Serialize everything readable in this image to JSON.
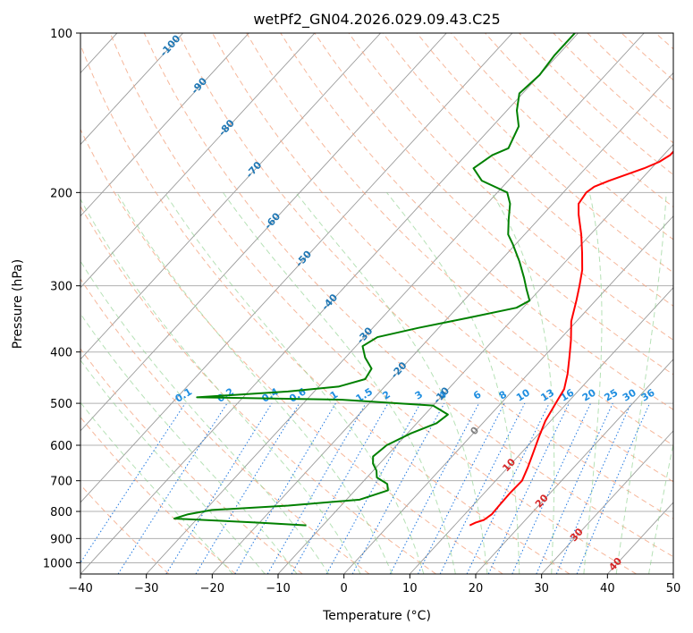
{
  "chart_data": {
    "type": "line",
    "subtype": "skew-t",
    "title": "wetPf2_GN04.2026.029.09.43.C25",
    "xlabel": "Temperature (°C)",
    "ylabel": "Pressure (hPa)",
    "xlim": [
      -40,
      50
    ],
    "ylim": [
      1050,
      100
    ],
    "skew": 1.2,
    "x_ticks": [
      -40,
      -30,
      -20,
      -10,
      0,
      10,
      20,
      30,
      40,
      50
    ],
    "y_ticks": [
      100,
      200,
      300,
      400,
      500,
      600,
      700,
      800,
      900,
      1000
    ],
    "isotherm_ticks": [
      -100,
      -90,
      -80,
      -70,
      -60,
      -50,
      -40,
      -30,
      -20,
      -10,
      0,
      10,
      20,
      30,
      40
    ],
    "mixing_ratio_labels": [
      "0.1",
      "0.2",
      "0.4",
      "0.6",
      "1",
      "1.5",
      "2",
      "3",
      "4",
      "6",
      "8",
      "10",
      "13",
      "16",
      "20",
      "25",
      "30",
      "36"
    ],
    "mixing_ratio_values": [
      0.1,
      0.2,
      0.4,
      0.6,
      1,
      1.5,
      2,
      3,
      4,
      6,
      8,
      10,
      13,
      16,
      20,
      25,
      30,
      36
    ],
    "series": [
      {
        "name": "Temperature",
        "color": "#ff0000",
        "points": [
          [
            850,
            12.3
          ],
          [
            840,
            12.8
          ],
          [
            830,
            13.7
          ],
          [
            810,
            14.1
          ],
          [
            780,
            14.0
          ],
          [
            740,
            13.9
          ],
          [
            700,
            14.0
          ],
          [
            660,
            13.0
          ],
          [
            620,
            11.8
          ],
          [
            580,
            10.5
          ],
          [
            540,
            9.2
          ],
          [
            500,
            8.3
          ],
          [
            470,
            7.6
          ],
          [
            440,
            6.0
          ],
          [
            410,
            4.0
          ],
          [
            380,
            1.8
          ],
          [
            350,
            -0.8
          ],
          [
            320,
            -2.9
          ],
          [
            300,
            -4.5
          ],
          [
            280,
            -6.3
          ],
          [
            260,
            -8.7
          ],
          [
            240,
            -11.4
          ],
          [
            220,
            -14.6
          ],
          [
            210,
            -16.1
          ],
          [
            200,
            -16.5
          ],
          [
            195,
            -16.1
          ],
          [
            190,
            -14.7
          ],
          [
            180,
            -11.1
          ],
          [
            175,
            -9.7
          ],
          [
            170,
            -9.0
          ],
          [
            160,
            -9.0
          ],
          [
            150,
            -9.7
          ],
          [
            140,
            -10.8
          ],
          [
            130,
            -12.4
          ],
          [
            120,
            -14.7
          ],
          [
            110,
            -17.4
          ],
          [
            100,
            -20.0
          ]
        ]
      },
      {
        "name": "Dewpoint",
        "color": "#008000",
        "points": [
          [
            850,
            -12.5
          ],
          [
            840,
            -20.0
          ],
          [
            825,
            -33.5
          ],
          [
            810,
            -32.0
          ],
          [
            795,
            -29.0
          ],
          [
            780,
            -18.0
          ],
          [
            760,
            -8.0
          ],
          [
            740,
            -6.0
          ],
          [
            730,
            -5.0
          ],
          [
            710,
            -6.0
          ],
          [
            690,
            -8.5
          ],
          [
            670,
            -9.5
          ],
          [
            650,
            -11.0
          ],
          [
            630,
            -12.0
          ],
          [
            600,
            -11.5
          ],
          [
            570,
            -9.5
          ],
          [
            545,
            -7.0
          ],
          [
            525,
            -6.5
          ],
          [
            505,
            -10.0
          ],
          [
            492,
            -25.0
          ],
          [
            487,
            -47.0
          ],
          [
            475,
            -34.0
          ],
          [
            465,
            -27.0
          ],
          [
            450,
            -24.0
          ],
          [
            430,
            -24.5
          ],
          [
            410,
            -27.0
          ],
          [
            390,
            -29.0
          ],
          [
            375,
            -28.0
          ],
          [
            360,
            -23.0
          ],
          [
            345,
            -17.0
          ],
          [
            330,
            -11.0
          ],
          [
            320,
            -10.0
          ],
          [
            305,
            -12.0
          ],
          [
            290,
            -14.0
          ],
          [
            270,
            -17.0
          ],
          [
            250,
            -20.5
          ],
          [
            240,
            -22.5
          ],
          [
            225,
            -24.5
          ],
          [
            210,
            -26.5
          ],
          [
            200,
            -28.5
          ],
          [
            190,
            -34.0
          ],
          [
            180,
            -37.0
          ],
          [
            170,
            -36.0
          ],
          [
            165,
            -34.5
          ],
          [
            150,
            -36.0
          ],
          [
            140,
            -38.5
          ],
          [
            130,
            -40.5
          ],
          [
            120,
            -40.0
          ],
          [
            110,
            -40.5
          ],
          [
            100,
            -40.5
          ]
        ]
      }
    ]
  }
}
